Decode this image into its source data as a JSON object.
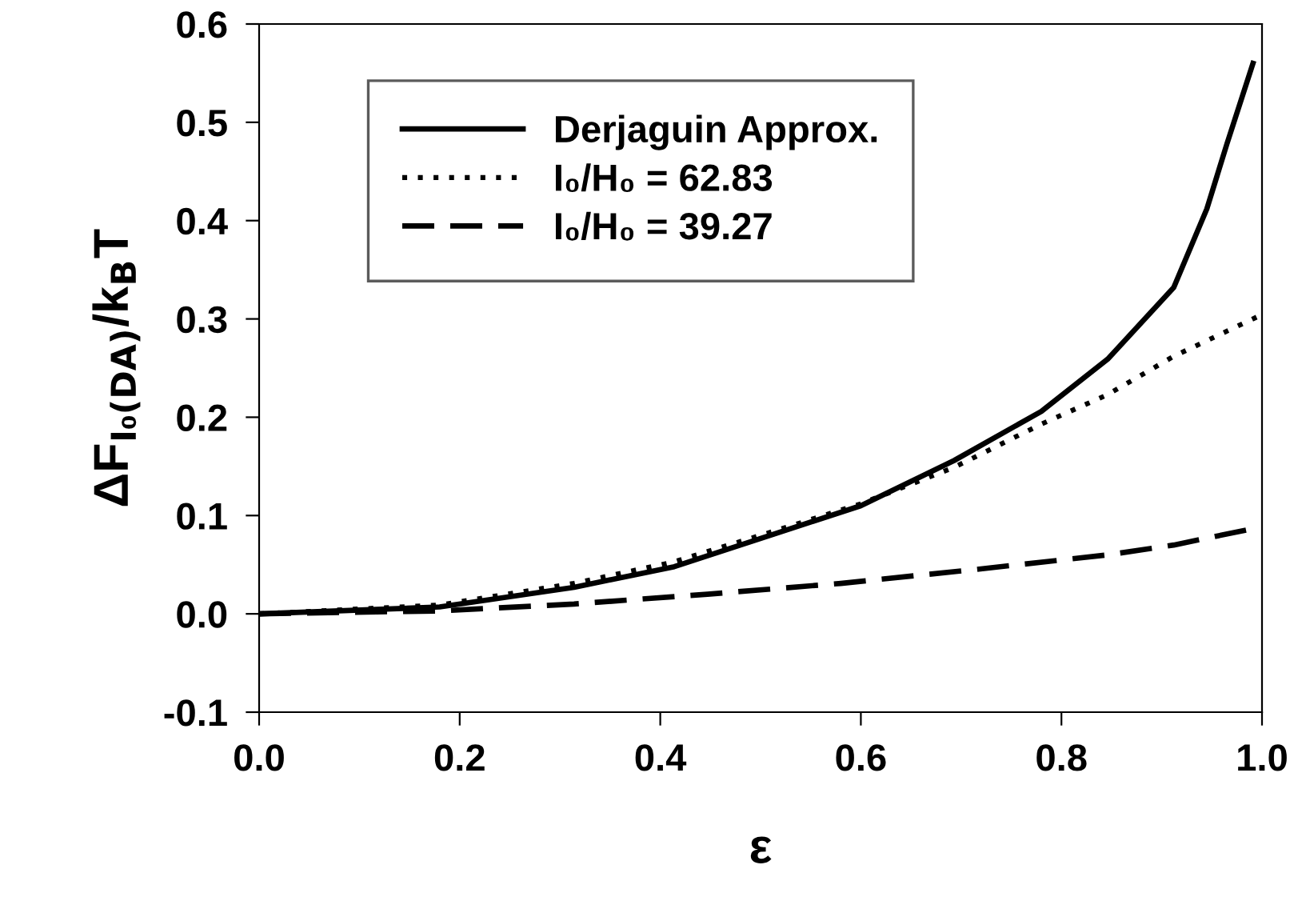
{
  "chart_data": {
    "type": "line",
    "xlabel": "ε",
    "ylabel": "ΔF$_{I₀(DA)}$/k$_{B}$T",
    "xlim": [
      0,
      1
    ],
    "xticks": [
      {
        "value": 0,
        "label": "0.0"
      },
      0.2,
      0.4,
      0.6,
      0.8,
      {
        "value": 1,
        "label": "1.0"
      }
    ],
    "ylim": [
      -0.1,
      0.6
    ],
    "yticks": [
      -0.1,
      {
        "value": 0,
        "label": "0.0"
      },
      0.1,
      0.2,
      0.3,
      0.4,
      0.5,
      0.6
    ],
    "grid": false,
    "legend": "top left",
    "marker": "none",
    "series": [
      {
        "name": "Derjaguin Approx.",
        "color": "#000000",
        "line_style": "solid",
        "x": [
          0,
          0.18,
          0.314,
          0.414,
          0.513,
          0.6,
          0.693,
          0.78,
          0.846,
          0.912,
          0.945,
          0.965,
          0.991
        ],
        "values": [
          0,
          0.007,
          0.027,
          0.048,
          0.081,
          0.11,
          0.156,
          0.206,
          0.259,
          0.332,
          0.412,
          0.478,
          0.56
        ]
      },
      {
        "name": "I₀/H₀ = 62.83",
        "color": "#000000",
        "line_style": "dotted",
        "x": [
          0,
          0.18,
          0.314,
          0.414,
          0.513,
          0.6,
          0.693,
          0.78,
          0.846,
          0.912,
          0.995
        ],
        "values": [
          0,
          0.009,
          0.031,
          0.053,
          0.084,
          0.112,
          0.149,
          0.193,
          0.223,
          0.262,
          0.302
        ]
      },
      {
        "name": "I₀/H₀ = 39.27",
        "color": "#000000",
        "line_style": "dashed",
        "x": [
          0,
          0.18,
          0.314,
          0.447,
          0.58,
          0.713,
          0.846,
          0.912,
          0.997
        ],
        "values": [
          0,
          0.003,
          0.01,
          0.02,
          0.031,
          0.045,
          0.06,
          0.07,
          0.088
        ]
      }
    ]
  }
}
